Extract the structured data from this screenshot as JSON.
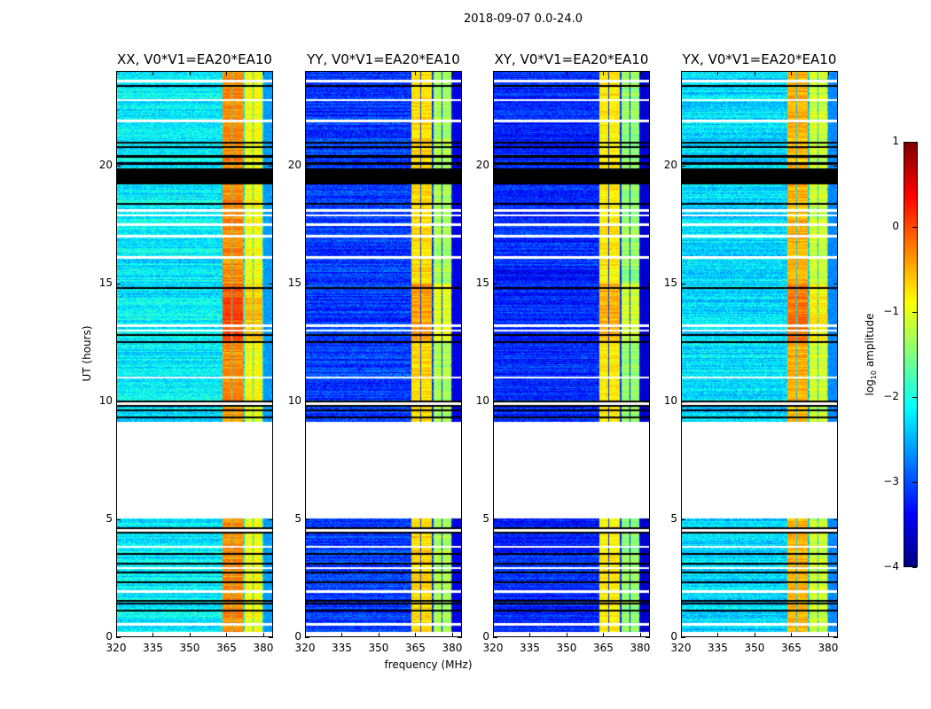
{
  "chart_data": {
    "type": "heatmap",
    "title": "2018-09-07 0.0-24.0",
    "xlabel": "frequency (MHz)",
    "ylabel": "UT (hours)",
    "xlim": [
      320,
      384
    ],
    "ylim": [
      0,
      24
    ],
    "xticks": [
      320,
      335,
      350,
      365,
      380
    ],
    "yticks": [
      0,
      5,
      10,
      15,
      20
    ],
    "colorbar": {
      "label_main": "log",
      "label_sub": "10",
      "label_rest": " amplitude",
      "range": [
        -4,
        1
      ],
      "ticks": [
        1,
        0,
        -1,
        -2,
        -3,
        -4
      ],
      "tick_labels": [
        "1",
        "0",
        "−1",
        "−2",
        "−3",
        "−4"
      ],
      "colormap": "jet"
    },
    "data_hours": [
      [
        0.2,
        5.0
      ],
      [
        9.1,
        24.0
      ]
    ],
    "flagged_black_hours": [
      [
        19.2,
        19.9
      ]
    ],
    "black_lines_hours": [
      1.1,
      1.4,
      1.5,
      2.3,
      2.7,
      3.1,
      3.5,
      4.4,
      4.6,
      9.3,
      9.6,
      9.8,
      10.0,
      12.5,
      12.8,
      14.8,
      18.4,
      20.1,
      20.4,
      20.8,
      21.0,
      23.4
    ],
    "white_lines_hours": [
      0.5,
      1.9,
      2.9,
      3.8,
      4.5,
      9.9,
      11.0,
      13.0,
      13.2,
      16.1,
      17.0,
      17.5,
      17.9,
      18.1,
      21.9,
      22.8,
      23.6
    ],
    "bands_mhz": [
      [
        363.5,
        367
      ],
      [
        367.5,
        372
      ],
      [
        372.5,
        376
      ],
      [
        376.5,
        380
      ]
    ],
    "panels": [
      {
        "title": "XX, V0*V1=EA20*EA10",
        "base": -2.2,
        "band": -0.3
      },
      {
        "title": "YY, V0*V1=EA20*EA10",
        "base": -3.1,
        "band": -0.7
      },
      {
        "title": "XY, V0*V1=EA20*EA10",
        "base": -3.2,
        "band": -0.8
      },
      {
        "title": "YX, V0*V1=EA20*EA10",
        "base": -2.3,
        "band": -0.5
      }
    ]
  }
}
